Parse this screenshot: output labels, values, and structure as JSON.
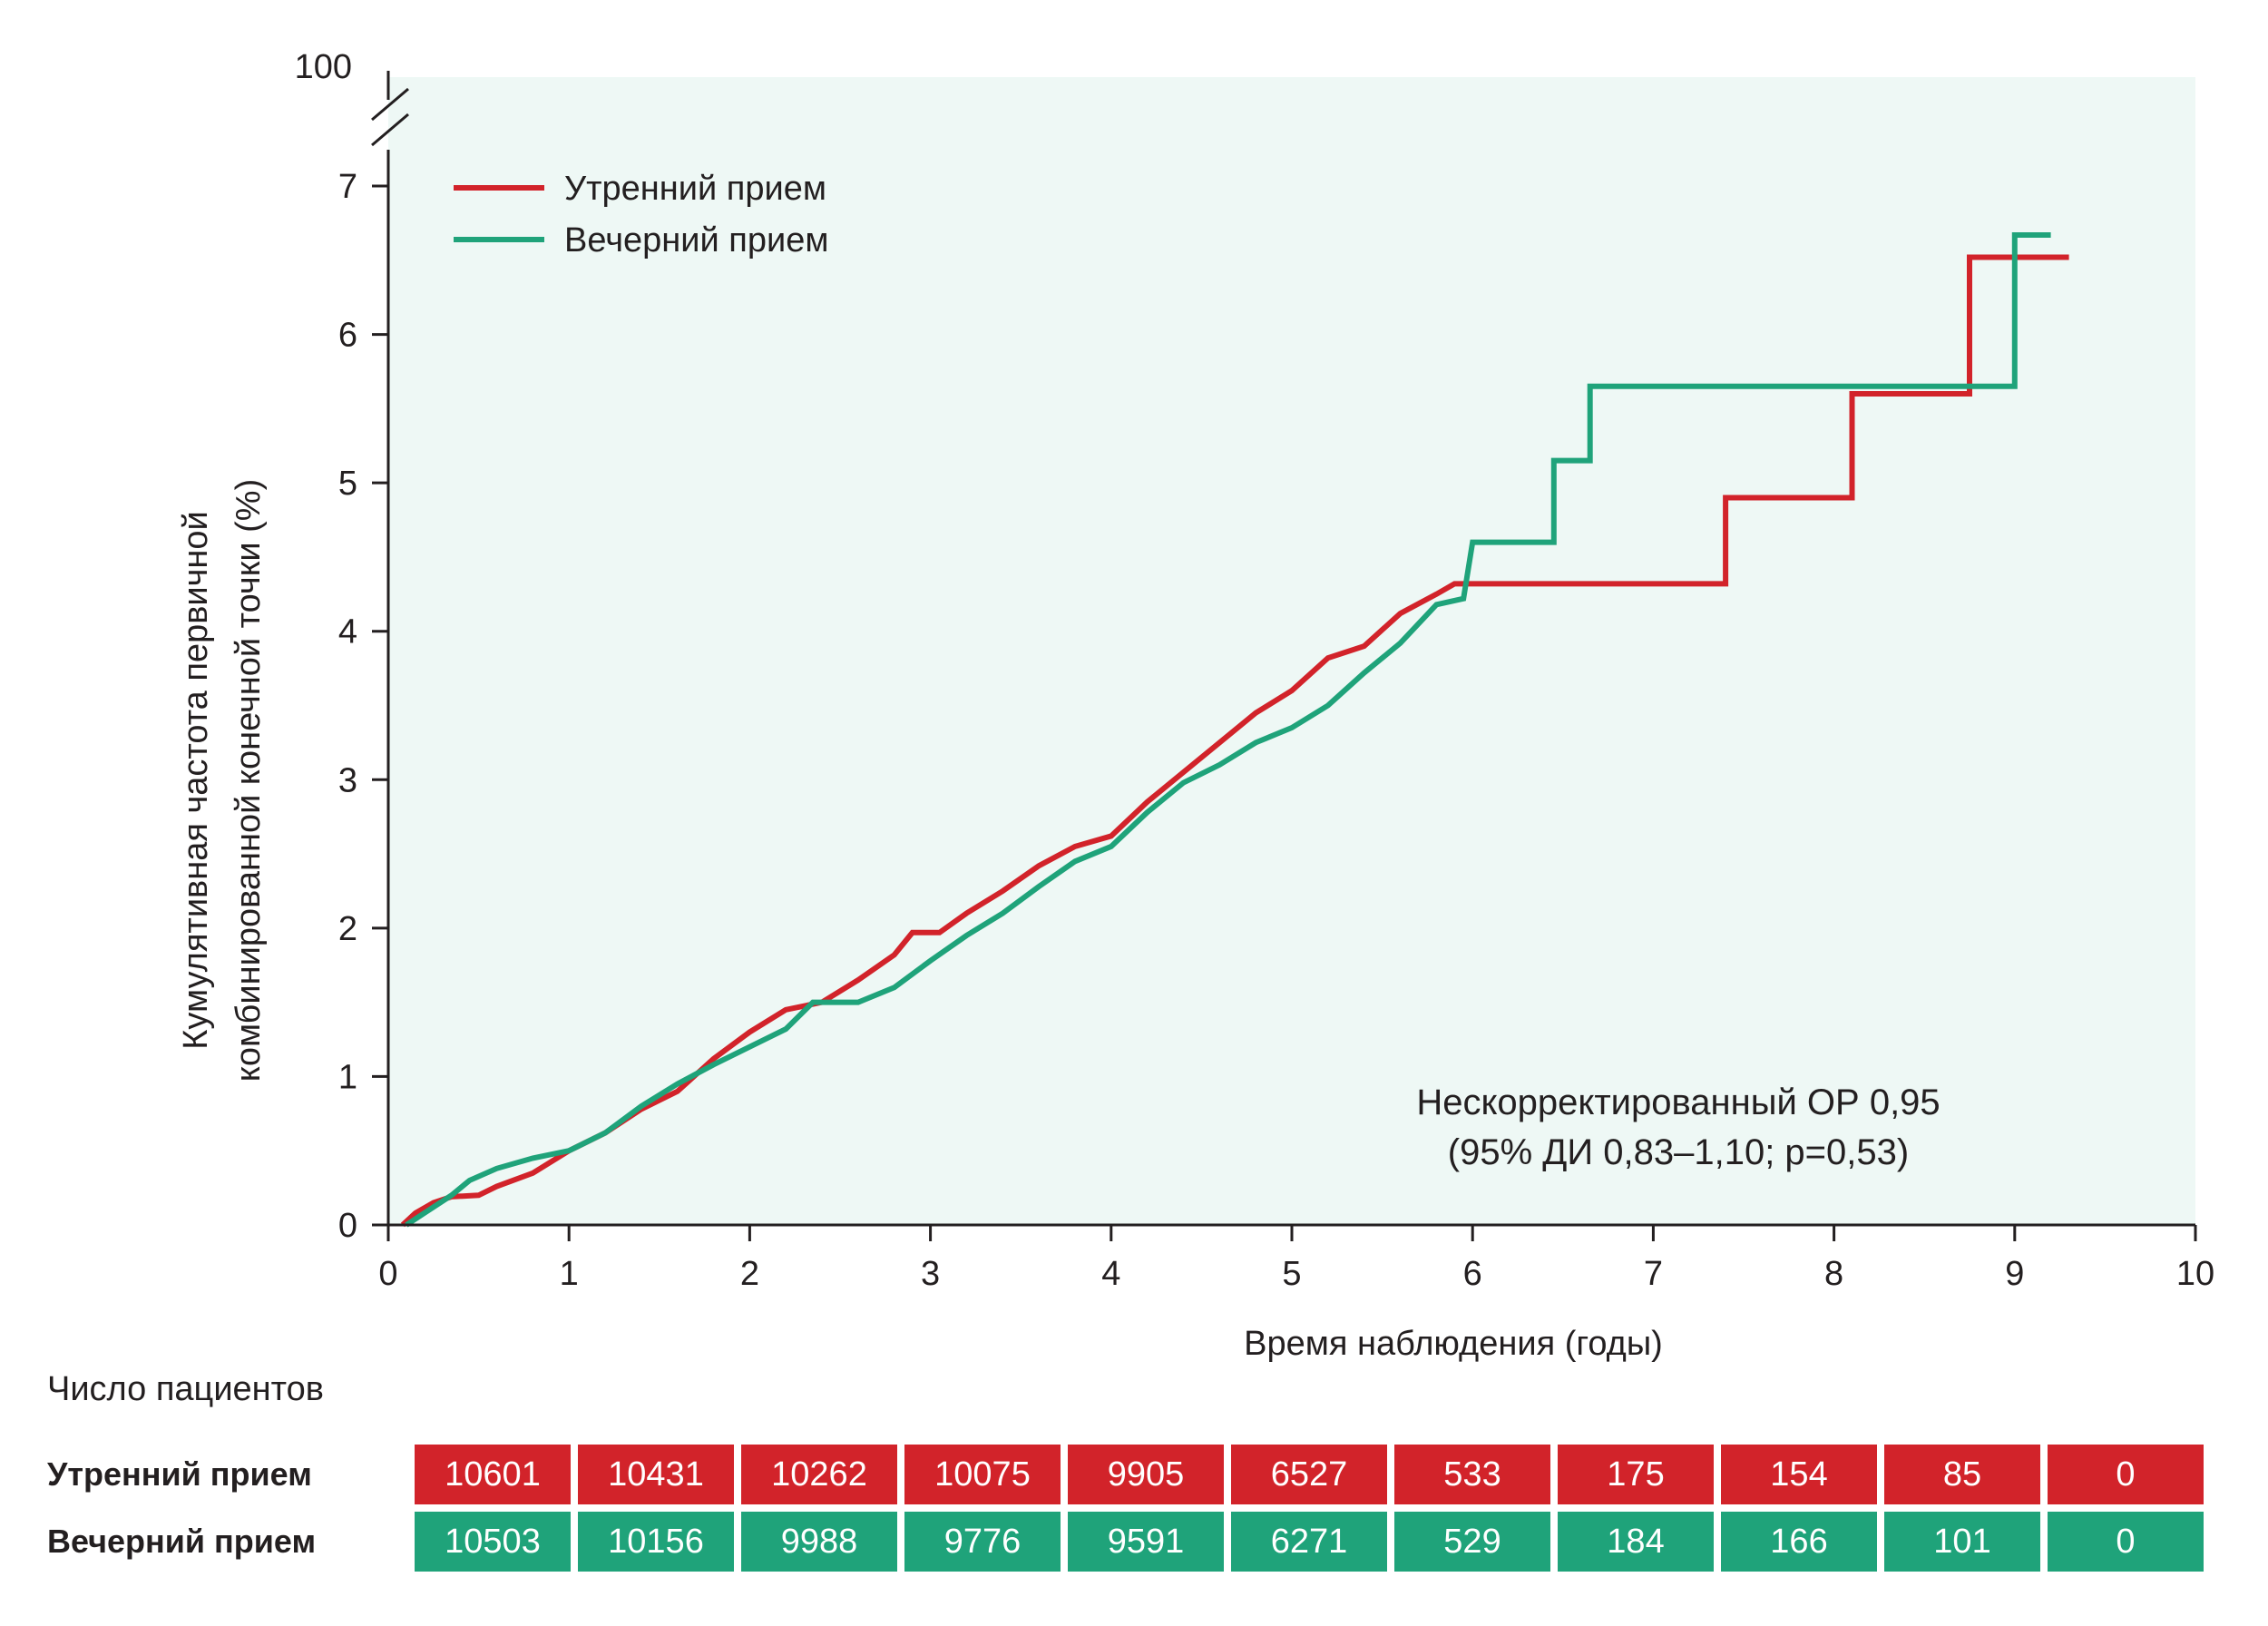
{
  "colors": {
    "morning": "#d2232a",
    "evening": "#1fa37a",
    "plot_background": "#eef8f5",
    "axis": "#231f20"
  },
  "chart_data": {
    "type": "line",
    "subtype": "step",
    "xlabel": "Время наблюдения (годы)",
    "ylabel_line1": "Кумулятивная частота первичной",
    "ylabel_line2": "комбинированной конечной точки (%)",
    "xlim": [
      0,
      10
    ],
    "ylim": [
      0,
      7.5
    ],
    "y_break_label": "100",
    "x_ticks": [
      "0",
      "1",
      "2",
      "3",
      "4",
      "5",
      "6",
      "7",
      "8",
      "9",
      "10"
    ],
    "y_ticks": [
      "0",
      "1",
      "2",
      "3",
      "4",
      "5",
      "6",
      "7"
    ],
    "legend_position": "top-left",
    "series": [
      {
        "name": "Утренний прием",
        "color_key": "morning",
        "points": [
          [
            0.08,
            0
          ],
          [
            0.15,
            0.08
          ],
          [
            0.25,
            0.15
          ],
          [
            0.35,
            0.19
          ],
          [
            0.5,
            0.2
          ],
          [
            0.6,
            0.26
          ],
          [
            0.8,
            0.35
          ],
          [
            1.0,
            0.5
          ],
          [
            1.2,
            0.62
          ],
          [
            1.4,
            0.78
          ],
          [
            1.6,
            0.9
          ],
          [
            1.8,
            1.12
          ],
          [
            2.0,
            1.3
          ],
          [
            2.2,
            1.45
          ],
          [
            2.4,
            1.5
          ],
          [
            2.6,
            1.65
          ],
          [
            2.8,
            1.82
          ],
          [
            2.9,
            1.97
          ],
          [
            3.05,
            1.97
          ],
          [
            3.2,
            2.1
          ],
          [
            3.4,
            2.25
          ],
          [
            3.6,
            2.42
          ],
          [
            3.8,
            2.55
          ],
          [
            4.0,
            2.62
          ],
          [
            4.2,
            2.85
          ],
          [
            4.4,
            3.05
          ],
          [
            4.6,
            3.25
          ],
          [
            4.8,
            3.45
          ],
          [
            5.0,
            3.6
          ],
          [
            5.2,
            3.82
          ],
          [
            5.4,
            3.9
          ],
          [
            5.6,
            4.12
          ],
          [
            5.8,
            4.25
          ],
          [
            5.9,
            4.32
          ],
          [
            7.4,
            4.32
          ],
          [
            7.4,
            4.9
          ],
          [
            8.1,
            4.9
          ],
          [
            8.1,
            5.6
          ],
          [
            8.75,
            5.6
          ],
          [
            8.75,
            6.52
          ],
          [
            9.3,
            6.52
          ]
        ]
      },
      {
        "name": "Вечерний  прием",
        "color_key": "evening",
        "points": [
          [
            0.1,
            0
          ],
          [
            0.2,
            0.08
          ],
          [
            0.35,
            0.2
          ],
          [
            0.45,
            0.3
          ],
          [
            0.6,
            0.38
          ],
          [
            0.8,
            0.45
          ],
          [
            1.0,
            0.5
          ],
          [
            1.2,
            0.62
          ],
          [
            1.4,
            0.8
          ],
          [
            1.6,
            0.95
          ],
          [
            1.8,
            1.08
          ],
          [
            2.0,
            1.2
          ],
          [
            2.2,
            1.32
          ],
          [
            2.35,
            1.5
          ],
          [
            2.6,
            1.5
          ],
          [
            2.8,
            1.6
          ],
          [
            3.0,
            1.78
          ],
          [
            3.2,
            1.95
          ],
          [
            3.4,
            2.1
          ],
          [
            3.6,
            2.28
          ],
          [
            3.8,
            2.45
          ],
          [
            4.0,
            2.55
          ],
          [
            4.2,
            2.78
          ],
          [
            4.4,
            2.98
          ],
          [
            4.6,
            3.1
          ],
          [
            4.8,
            3.25
          ],
          [
            5.0,
            3.35
          ],
          [
            5.2,
            3.5
          ],
          [
            5.4,
            3.72
          ],
          [
            5.6,
            3.92
          ],
          [
            5.8,
            4.18
          ],
          [
            5.95,
            4.22
          ],
          [
            6.0,
            4.6
          ],
          [
            6.45,
            4.6
          ],
          [
            6.45,
            5.15
          ],
          [
            6.65,
            5.15
          ],
          [
            6.65,
            5.65
          ],
          [
            9.0,
            5.65
          ],
          [
            9.0,
            6.67
          ],
          [
            9.2,
            6.67
          ]
        ]
      }
    ],
    "annotation_line1": "Нескорректированный ОР 0,95",
    "annotation_line2": "(95% ДИ 0,83–1,10; p=0,53)"
  },
  "risk_table": {
    "title": "Число пациентов",
    "rows": [
      {
        "label": "Утренний прием",
        "color_key": "morning",
        "values": [
          "10601",
          "10431",
          "10262",
          "10075",
          "9905",
          "6527",
          "533",
          "175",
          "154",
          "85",
          "0"
        ]
      },
      {
        "label": "Вечерний  прием",
        "color_key": "evening",
        "values": [
          "10503",
          "10156",
          "9988",
          "9776",
          "9591",
          "6271",
          "529",
          "184",
          "166",
          "101",
          "0"
        ]
      }
    ]
  }
}
